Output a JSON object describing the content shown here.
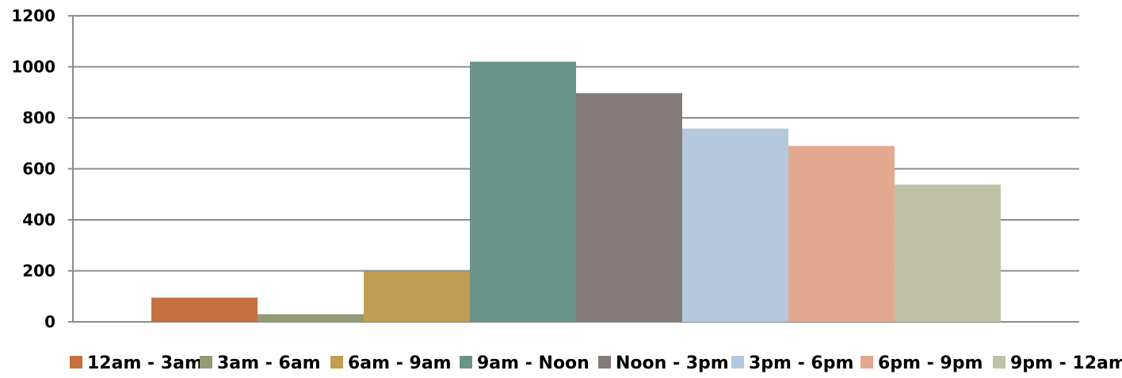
{
  "chart_data": {
    "type": "bar",
    "title": "",
    "xlabel": "",
    "ylabel": "",
    "ylim": [
      0,
      1200
    ],
    "yticks": [
      "0",
      "200",
      "400",
      "600",
      "800",
      "1000",
      "1200"
    ],
    "grid": true,
    "legend_position": "bottom",
    "series": [
      {
        "name": "12am - 3am",
        "value": 95,
        "color": "#C5703E"
      },
      {
        "name": "3am - 6am",
        "value": 30,
        "color": "#939B75"
      },
      {
        "name": "6am - 9am",
        "value": 197,
        "color": "#C09D51"
      },
      {
        "name": "9am - Noon",
        "value": 1020,
        "color": "#6A9389"
      },
      {
        "name": "Noon - 3pm",
        "value": 897,
        "color": "#847B7A"
      },
      {
        "name": "3pm - 6pm",
        "value": 758,
        "color": "#B4C9DE"
      },
      {
        "name": "6pm - 9pm",
        "value": 690,
        "color": "#E4A88E"
      },
      {
        "name": "9pm - 12am",
        "value": 538,
        "color": "#C0C2A8"
      }
    ]
  }
}
